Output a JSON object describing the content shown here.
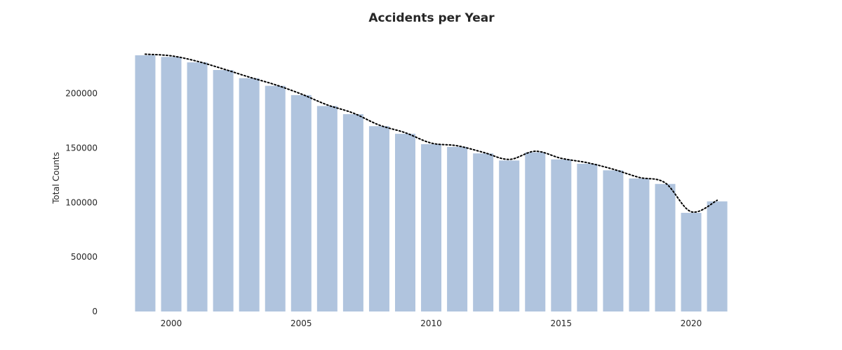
{
  "chart_data": {
    "type": "bar",
    "title": "Accidents per Year",
    "xlabel": "",
    "ylabel": "Total Counts",
    "categories": [
      1999,
      2000,
      2001,
      2002,
      2003,
      2004,
      2005,
      2006,
      2007,
      2008,
      2009,
      2010,
      2011,
      2012,
      2013,
      2014,
      2015,
      2016,
      2017,
      2018,
      2019,
      2020,
      2021
    ],
    "values": [
      235000,
      233500,
      228500,
      221500,
      214000,
      207000,
      198500,
      188500,
      181000,
      170000,
      163000,
      153500,
      151000,
      145000,
      138500,
      146000,
      139500,
      135500,
      129500,
      122000,
      117000,
      90500,
      101000
    ],
    "trend_line": {
      "style": "dotted",
      "color": "#000000",
      "values": [
        236000,
        234500,
        229500,
        222500,
        215000,
        208000,
        199500,
        189500,
        182000,
        171000,
        164000,
        154500,
        152000,
        146000,
        139500,
        147000,
        140500,
        136500,
        130500,
        123000,
        118000,
        91500,
        102000
      ]
    },
    "x_ticks": [
      "2000",
      "2005",
      "2010",
      "2015",
      "2020"
    ],
    "y_ticks": [
      "0",
      "50000",
      "100000",
      "150000",
      "200000"
    ],
    "ylim": [
      0,
      260000
    ],
    "grid": false,
    "colors": {
      "bar": "#b0c4de",
      "line": "#000000",
      "text": "#262626"
    }
  }
}
